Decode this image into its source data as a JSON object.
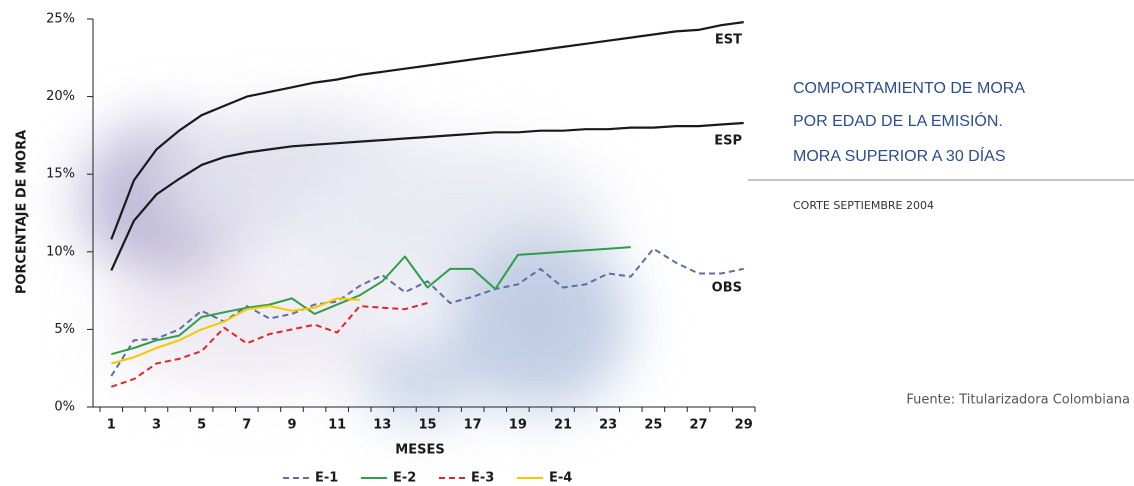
{
  "chart_data": {
    "type": "line",
    "title": [
      "COMPORTAMIENTO DE MORA",
      "POR EDAD DE LA EMISIÓN.",
      "MORA SUPERIOR A 30 DÍAS"
    ],
    "subtitle": "CORTE SEPTIEMBRE 2004",
    "source": "Fuente: Titularizadora Colombiana",
    "x_label": "MESES",
    "y_label": "PORCENTAJE DE MORA",
    "categories": [
      "1",
      null,
      "3",
      null,
      "5",
      null,
      "7",
      null,
      "9",
      null,
      "11",
      null,
      "13",
      null,
      "15",
      null,
      "17",
      null,
      "19",
      null,
      "21",
      null,
      "23",
      null,
      "25",
      null,
      "27",
      null,
      "29"
    ],
    "ylim": [
      0,
      25
    ],
    "yticks": [
      {
        "value": 0,
        "label": "0%"
      },
      {
        "value": 5,
        "label": "5%"
      },
      {
        "value": 10,
        "label": "10%"
      },
      {
        "value": 15,
        "label": "15%"
      },
      {
        "value": 20,
        "label": "20%"
      },
      {
        "value": 25,
        "label": "25%"
      }
    ],
    "series": [
      {
        "name": "E-1",
        "color": "#5b6fa0",
        "dashed": true,
        "values": [
          2.0,
          4.3,
          4.4,
          5.0,
          6.2,
          5.5,
          6.5,
          5.7,
          6.0,
          6.6,
          6.8,
          7.8,
          8.5,
          7.4,
          8.1,
          6.7,
          7.1,
          7.6,
          7.9,
          8.9,
          7.7,
          7.9,
          8.6,
          8.4,
          10.2,
          9.3,
          8.6,
          8.6,
          8.9
        ]
      },
      {
        "name": "E-2",
        "color": "#2e9e48",
        "dashed": false,
        "values": [
          3.4,
          3.8,
          4.3,
          4.6,
          5.8,
          6.1,
          6.4,
          6.6,
          7.0,
          6.0,
          6.6,
          7.2,
          8.1,
          9.7,
          7.7,
          8.9,
          8.9,
          7.6,
          9.8,
          9.9,
          10.0,
          10.1,
          10.2,
          10.3,
          null,
          null,
          null,
          null,
          null
        ]
      },
      {
        "name": "E-3",
        "color": "#e0262a",
        "dashed": true,
        "values": [
          1.3,
          1.8,
          2.8,
          3.1,
          3.6,
          5.1,
          4.1,
          4.7,
          5.0,
          5.3,
          4.8,
          6.5,
          6.4,
          6.3,
          6.7,
          null,
          null,
          null,
          null,
          null,
          null,
          null,
          null,
          null,
          null,
          null,
          null,
          null,
          null
        ]
      },
      {
        "name": "E-4",
        "color": "#f5c800",
        "dashed": false,
        "values": [
          2.8,
          3.2,
          3.8,
          4.3,
          5.0,
          5.5,
          6.3,
          6.5,
          6.2,
          6.4,
          7.0,
          6.9,
          null,
          null,
          null,
          null,
          null,
          null,
          null,
          null,
          null,
          null,
          null,
          null,
          null,
          null,
          null,
          null,
          null
        ]
      }
    ],
    "reference_series": [
      {
        "name": "EST",
        "color": "#1a1a1a",
        "values": [
          10.8,
          14.6,
          16.6,
          17.8,
          18.8,
          19.4,
          20.0,
          20.3,
          20.6,
          20.9,
          21.1,
          21.4,
          21.6,
          21.8,
          22.0,
          22.2,
          22.4,
          22.6,
          22.8,
          23.0,
          23.2,
          23.4,
          23.6,
          23.8,
          24.0,
          24.2,
          24.3,
          24.6,
          24.8
        ]
      },
      {
        "name": "ESP",
        "color": "#1a1a1a",
        "values": [
          8.8,
          12.0,
          13.7,
          14.7,
          15.6,
          16.1,
          16.4,
          16.6,
          16.8,
          16.9,
          17.0,
          17.1,
          17.2,
          17.3,
          17.4,
          17.5,
          17.6,
          17.7,
          17.7,
          17.8,
          17.8,
          17.9,
          17.9,
          18.0,
          18.0,
          18.1,
          18.1,
          18.2,
          18.3
        ]
      }
    ],
    "annotations": [
      "OBS"
    ]
  }
}
